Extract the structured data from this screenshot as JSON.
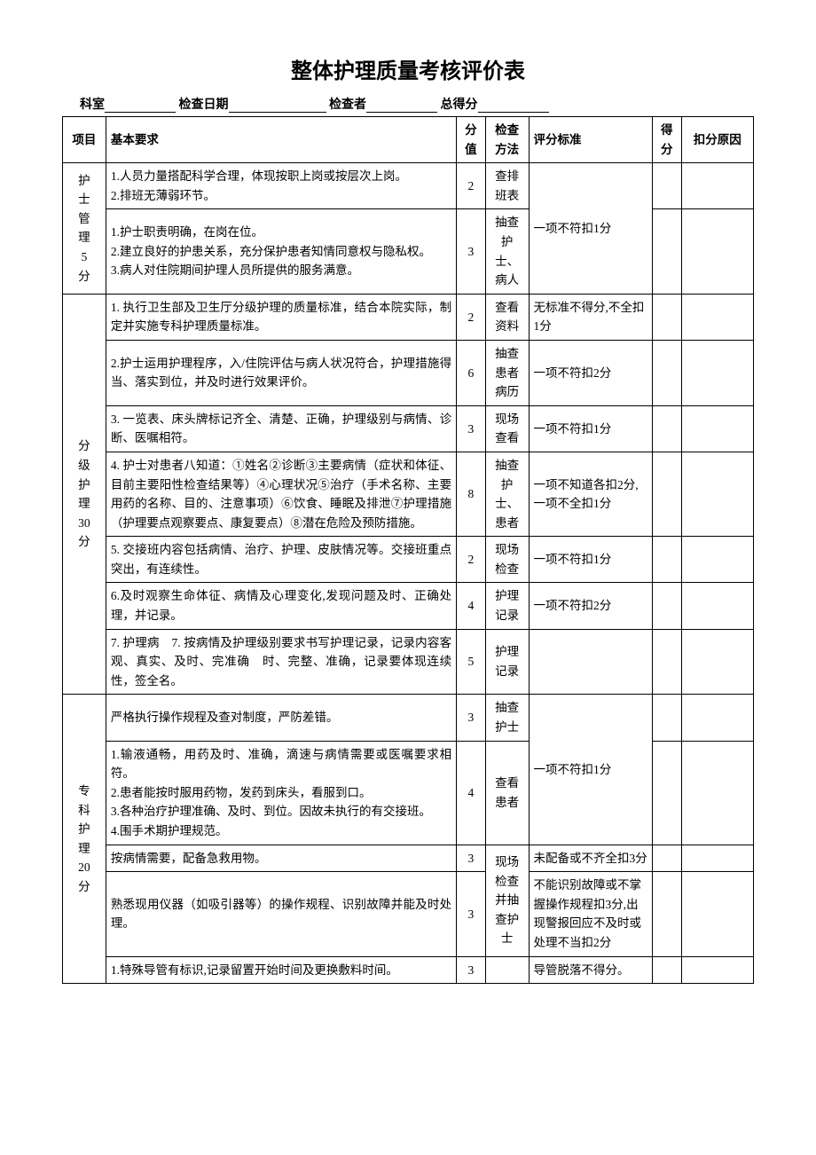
{
  "title": "整体护理质量考核评价表",
  "header": {
    "dept_label": "科室",
    "date_label": "检查日期",
    "checker_label": "检查者",
    "total_label": "总得分"
  },
  "columns": {
    "project": "项目",
    "requirement": "基本要求",
    "score": "分值",
    "method": "检查方法",
    "standard": "评分标准",
    "earned": "得分",
    "reason": "扣分原因"
  },
  "sections": [
    {
      "name": "护士管理5分",
      "rows": [
        {
          "req": "1.人员力量搭配科学合理，体现按职上岗或按层次上岗。\n2.排班无薄弱环节。",
          "score": "2",
          "method": "查排班表",
          "standard": "一项不符扣1分",
          "standard_rowspan": 2
        },
        {
          "req": "1.护士职责明确，在岗在位。\n2.建立良好的护患关系，充分保护患者知情同意权与隐私权。\n3.病人对住院期间护理人员所提供的服务满意。",
          "score": "3",
          "method": "抽查护士、病人"
        }
      ]
    },
    {
      "name": "分级护理30分",
      "rows": [
        {
          "req": "1. 执行卫生部及卫生厅分级护理的质量标准，结合本院实际，制定并实施专科护理质量标准。",
          "score": "2",
          "method": "查看资料",
          "standard": "无标准不得分,不全扣1分"
        },
        {
          "req": "2.护士运用护理程序，入/住院评估与病人状况符合，护理措施得当、落实到位，并及时进行效果评价。",
          "score": "6",
          "method": "抽查患者病历",
          "standard": "一项不符扣2分"
        },
        {
          "req": "3. 一览表、床头牌标记齐全、清楚、正确，护理级别与病情、诊断、医嘱相符。",
          "score": "3",
          "method": "现场查看",
          "standard": "一项不符扣1分"
        },
        {
          "req": "4. 护士对患者八知道：①姓名②诊断③主要病情（症状和体征、目前主要阳性检查结果等）④心理状况⑤治疗（手术名称、主要用药的名称、目的、注意事项）⑥饮食、睡眠及排泄⑦护理措施（护理要点观察要点、康复要点）⑧潜在危险及预防措施。",
          "score": "8",
          "method": "抽查护士、患者",
          "standard": "一项不知道各扣2分,一项不全扣1分"
        },
        {
          "req": "5. 交接班内容包括病情、治疗、护理、皮肤情况等。交接班重点突出，有连续性。",
          "score": "2",
          "method": "现场检查",
          "standard": "一项不符扣1分"
        },
        {
          "req": "6.及时观察生命体征、病情及心理变化,发现问题及时、正确处理，并记录。",
          "score": "4",
          "method": "护理记录",
          "standard": "一项不符扣2分"
        },
        {
          "req": "7. 护理病　7. 按病情及护理级别要求书写护理记录，记录内容客观、真实、及时、完准确　时、完整、准确，记录要体现连续性，签全名。",
          "score": "5",
          "method": "护理记录",
          "standard": ""
        }
      ]
    },
    {
      "name": "专科护理20分",
      "rows": [
        {
          "req": "严格执行操作规程及查对制度，严防差错。",
          "score": "3",
          "method": "抽查护士",
          "standard": "一项不符扣1分",
          "standard_rowspan": 2
        },
        {
          "req": "1.输液通畅，用药及时、准确，滴速与病情需要或医嘱要求相符。\n2.患者能按时服用药物，发药到床头，看服到口。\n3.各种治疗护理准确、及时、到位。因故未执行的有交接班。\n4.围手术期护理规范。",
          "score": "4",
          "method": "查看患者"
        },
        {
          "req": "按病情需要，配备急救用物。",
          "score": "3",
          "method": "现场检查并抽查护士",
          "method_rowspan": 2,
          "standard": "未配备或不齐全扣3分"
        },
        {
          "req": "熟悉现用仪器（如吸引器等）的操作规程、识别故障并能及时处理。",
          "score": "3",
          "standard": "不能识别故障或不掌握操作规程扣3分,出现警报回应不及时或处理不当扣2分"
        },
        {
          "req": "1.特殊导管有标识,记录留置开始时间及更换敷料时间。",
          "score": "3",
          "method": "",
          "standard": "导管脱落不得分。"
        }
      ]
    }
  ],
  "style": {
    "font_family": "SimSun",
    "title_fontsize": 24,
    "body_fontsize": 13.5,
    "border_color": "#000000",
    "background_color": "#ffffff",
    "line_height": 1.6
  }
}
